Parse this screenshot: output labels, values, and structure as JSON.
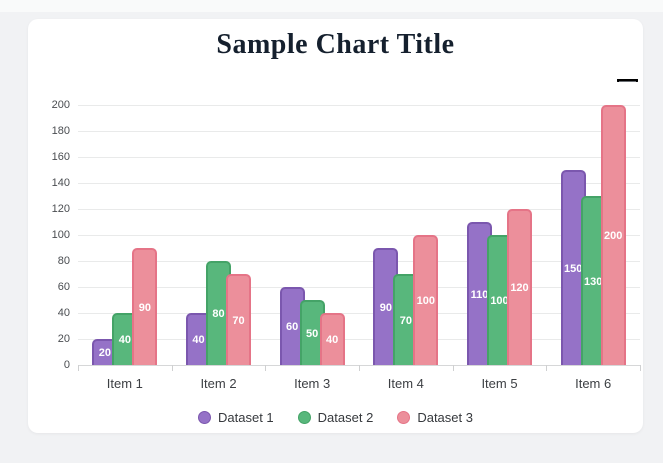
{
  "page": {
    "background_color": "#f1f2f4",
    "card_background_color": "#ffffff"
  },
  "menu": {
    "icon": "hamburger-icon"
  },
  "chart_data": {
    "type": "bar",
    "title": "Sample Chart Title",
    "title_color": "#15202e",
    "categories": [
      "Item 1",
      "Item 2",
      "Item 3",
      "Item 4",
      "Item 5",
      "Item 6"
    ],
    "series": [
      {
        "name": "Dataset 1",
        "color": "#9572c7",
        "border_color": "#7b57ae",
        "values": [
          20,
          40,
          60,
          90,
          110,
          150
        ]
      },
      {
        "name": "Dataset 2",
        "color": "#58b77c",
        "border_color": "#44a367",
        "values": [
          40,
          80,
          50,
          70,
          100,
          130
        ]
      },
      {
        "name": "Dataset 3",
        "color": "#ec8f9b",
        "border_color": "#e57487",
        "values": [
          90,
          70,
          40,
          100,
          120,
          200
        ]
      }
    ],
    "y_ticks": [
      0,
      20,
      40,
      60,
      80,
      100,
      120,
      140,
      160,
      180,
      200
    ],
    "ylim": [
      0,
      200
    ],
    "grid": true,
    "legend_position": "bottom",
    "value_labels_visible": true,
    "value_label_color": "#ffffff"
  }
}
